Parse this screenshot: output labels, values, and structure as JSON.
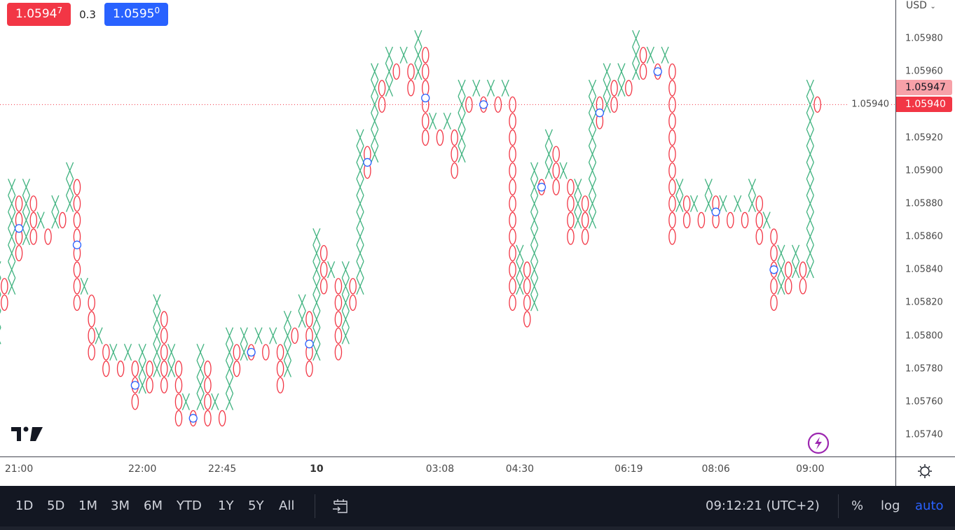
{
  "legend": {
    "bid_main": "1.0594",
    "bid_sup": "7",
    "spread": "0.3",
    "ask_main": "1.0595",
    "ask_sup": "0",
    "bid_color": "#f23645",
    "ask_color": "#2962ff"
  },
  "price_axis": {
    "currency": "USD",
    "currency_icon": "chevron-down-icon",
    "last_price_label": "1.05947",
    "box_price_label": "1.05940"
  },
  "time_axis": {
    "settings_icon": "gear-icon"
  },
  "bottom_bar": {
    "ranges": [
      "1D",
      "5D",
      "1M",
      "3M",
      "6M",
      "YTD",
      "1Y",
      "5Y",
      "All"
    ],
    "goto_date_icon": "calendar-arrow-icon",
    "clock": "09:12:21 (UTC+2)",
    "percent": "%",
    "log": "log",
    "auto": "auto",
    "auto_color": "#2962ff"
  },
  "icons": {
    "logo": "tradingview-logo",
    "lightning": "lightning-icon"
  },
  "chart_data": {
    "type": "point-and-figure",
    "box_size": 0.0001,
    "ylim": [
      1.0573,
      1.0599
    ],
    "y_ticks": [
      "1.05740",
      "1.05760",
      "1.05780",
      "1.05800",
      "1.05820",
      "1.05840",
      "1.05860",
      "1.05880",
      "1.05900",
      "1.05920",
      "1.05940",
      "1.05960",
      "1.05980"
    ],
    "x_ticks": [
      {
        "label": "21:00",
        "column": 4,
        "bold": false
      },
      {
        "label": "22:00",
        "column": 21,
        "bold": false
      },
      {
        "label": "22:45",
        "column": 32,
        "bold": false
      },
      {
        "label": "10",
        "column": 45,
        "bold": true
      },
      {
        "label": "03:08",
        "column": 62,
        "bold": false
      },
      {
        "label": "04:30",
        "column": 73,
        "bold": false
      },
      {
        "label": "06:19",
        "column": 88,
        "bold": false
      },
      {
        "label": "08:06",
        "column": 100,
        "bold": false
      },
      {
        "label": "09:00",
        "column": 113,
        "bold": false
      }
    ],
    "last_price": 1.05947,
    "current_box_price": 1.0594,
    "colors": {
      "x": "#3fb27f",
      "o": "#f23645",
      "marker": "#2962ff",
      "last_price_bg": "#f7a1a8",
      "box_price_bg": "#f23645"
    },
    "columns": [
      [
        "X",
        1.058,
        1.0584
      ],
      [
        "O",
        1.0582,
        1.0583
      ],
      [
        "X",
        1.0583,
        1.0589
      ],
      [
        "O",
        1.0585,
        1.0588
      ],
      [
        "X",
        1.0586,
        1.0589
      ],
      [
        "O",
        1.0586,
        1.0588
      ],
      [
        "X",
        1.0587,
        1.0587
      ],
      [
        "O",
        1.0586,
        1.0586
      ],
      [
        "X",
        1.0587,
        1.0588
      ],
      [
        "O",
        1.0587,
        1.0587
      ],
      [
        "X",
        1.0588,
        1.059
      ],
      [
        "O",
        1.0582,
        1.0589
      ],
      [
        "X",
        1.0583,
        1.0583
      ],
      [
        "O",
        1.0579,
        1.0582
      ],
      [
        "X",
        1.058,
        1.058
      ],
      [
        "O",
        1.0578,
        1.0579
      ],
      [
        "X",
        1.0579,
        1.0579
      ],
      [
        "O",
        1.0578,
        1.0578
      ],
      [
        "X",
        1.0579,
        1.0579
      ],
      [
        "O",
        1.0576,
        1.0578
      ],
      [
        "X",
        1.0577,
        1.0579
      ],
      [
        "O",
        1.0577,
        1.0578
      ],
      [
        "X",
        1.0578,
        1.0582
      ],
      [
        "O",
        1.0577,
        1.0581
      ],
      [
        "X",
        1.0578,
        1.0579
      ],
      [
        "O",
        1.0575,
        1.0578
      ],
      [
        "X",
        1.0576,
        1.0576
      ],
      [
        "O",
        1.0575,
        1.0575
      ],
      [
        "X",
        1.0576,
        1.0579
      ],
      [
        "O",
        1.0575,
        1.0578
      ],
      [
        "X",
        1.0576,
        1.0576
      ],
      [
        "O",
        1.0575,
        1.0575
      ],
      [
        "X",
        1.0576,
        1.058
      ],
      [
        "O",
        1.0578,
        1.0579
      ],
      [
        "X",
        1.0579,
        1.058
      ],
      [
        "O",
        1.0579,
        1.0579
      ],
      [
        "X",
        1.058,
        1.058
      ],
      [
        "O",
        1.0579,
        1.0579
      ],
      [
        "X",
        1.058,
        1.058
      ],
      [
        "O",
        1.0577,
        1.0579
      ],
      [
        "X",
        1.0578,
        1.0581
      ],
      [
        "O",
        1.058,
        1.058
      ],
      [
        "X",
        1.0581,
        1.0582
      ],
      [
        "O",
        1.0578,
        1.0581
      ],
      [
        "X",
        1.0579,
        1.0586
      ],
      [
        "O",
        1.0583,
        1.0585
      ],
      [
        "X",
        1.0584,
        1.0584
      ],
      [
        "O",
        1.0579,
        1.0583
      ],
      [
        "X",
        1.058,
        1.0584
      ],
      [
        "O",
        1.0582,
        1.0583
      ],
      [
        "X",
        1.0583,
        1.0592
      ],
      [
        "O",
        1.059,
        1.0591
      ],
      [
        "X",
        1.0591,
        1.0596
      ],
      [
        "O",
        1.0594,
        1.0595
      ],
      [
        "X",
        1.0595,
        1.0597
      ],
      [
        "O",
        1.0596,
        1.0596
      ],
      [
        "X",
        1.0597,
        1.0597
      ],
      [
        "O",
        1.0595,
        1.0596
      ],
      [
        "X",
        1.0596,
        1.0598
      ],
      [
        "O",
        1.0592,
        1.0597
      ],
      [
        "X",
        1.0593,
        1.0593
      ],
      [
        "O",
        1.0592,
        1.0592
      ],
      [
        "X",
        1.0593,
        1.0593
      ],
      [
        "O",
        1.059,
        1.0592
      ],
      [
        "X",
        1.0591,
        1.0595
      ],
      [
        "O",
        1.0594,
        1.0594
      ],
      [
        "X",
        1.0595,
        1.0595
      ],
      [
        "O",
        1.0594,
        1.0594
      ],
      [
        "X",
        1.0595,
        1.0595
      ],
      [
        "O",
        1.0594,
        1.0594
      ],
      [
        "X",
        1.0595,
        1.0595
      ],
      [
        "O",
        1.0582,
        1.0594
      ],
      [
        "X",
        1.0583,
        1.0585
      ],
      [
        "O",
        1.0581,
        1.0584
      ],
      [
        "X",
        1.0582,
        1.059
      ],
      [
        "O",
        1.0589,
        1.0589
      ],
      [
        "X",
        1.059,
        1.0592
      ],
      [
        "O",
        1.0589,
        1.0591
      ],
      [
        "X",
        1.059,
        1.059
      ],
      [
        "O",
        1.0586,
        1.0589
      ],
      [
        "X",
        1.0587,
        1.0589
      ],
      [
        "O",
        1.0586,
        1.0588
      ],
      [
        "X",
        1.0587,
        1.0595
      ],
      [
        "O",
        1.0593,
        1.0594
      ],
      [
        "X",
        1.0594,
        1.0596
      ],
      [
        "O",
        1.0594,
        1.0595
      ],
      [
        "X",
        1.0595,
        1.0596
      ],
      [
        "O",
        1.0595,
        1.0595
      ],
      [
        "X",
        1.0596,
        1.0598
      ],
      [
        "O",
        1.0596,
        1.0597
      ],
      [
        "X",
        1.0597,
        1.0597
      ],
      [
        "O",
        1.0596,
        1.0596
      ],
      [
        "X",
        1.0597,
        1.0597
      ],
      [
        "O",
        1.0586,
        1.0596
      ],
      [
        "X",
        1.0588,
        1.0589
      ],
      [
        "O",
        1.0587,
        1.0588
      ],
      [
        "X",
        1.0588,
        1.0588
      ],
      [
        "O",
        1.0587,
        1.0587
      ],
      [
        "X",
        1.0588,
        1.0589
      ],
      [
        "O",
        1.0587,
        1.0588
      ],
      [
        "X",
        1.0588,
        1.0588
      ],
      [
        "O",
        1.0587,
        1.0587
      ],
      [
        "X",
        1.0588,
        1.0588
      ],
      [
        "O",
        1.0587,
        1.0587
      ],
      [
        "X",
        1.0588,
        1.0589
      ],
      [
        "O",
        1.0586,
        1.0588
      ],
      [
        "X",
        1.0587,
        1.0587
      ],
      [
        "O",
        1.0582,
        1.0586
      ],
      [
        "X",
        1.0583,
        1.0585
      ],
      [
        "O",
        1.0583,
        1.0584
      ],
      [
        "X",
        1.0584,
        1.0585
      ],
      [
        "O",
        1.0583,
        1.0584
      ],
      [
        "X",
        1.0584,
        1.0595
      ],
      [
        "O",
        1.0594,
        1.0594
      ]
    ],
    "markers": [
      {
        "column": 4,
        "price": 1.05865
      },
      {
        "column": 12,
        "price": 1.05855
      },
      {
        "column": 20,
        "price": 1.0577
      },
      {
        "column": 28,
        "price": 1.0575
      },
      {
        "column": 36,
        "price": 1.0579
      },
      {
        "column": 44,
        "price": 1.05795
      },
      {
        "column": 52,
        "price": 1.05905
      },
      {
        "column": 60,
        "price": 1.05944
      },
      {
        "column": 68,
        "price": 1.0594
      },
      {
        "column": 76,
        "price": 1.0589
      },
      {
        "column": 84,
        "price": 1.05935
      },
      {
        "column": 92,
        "price": 1.0596
      },
      {
        "column": 100,
        "price": 1.05875
      },
      {
        "column": 108,
        "price": 1.0584
      }
    ]
  }
}
